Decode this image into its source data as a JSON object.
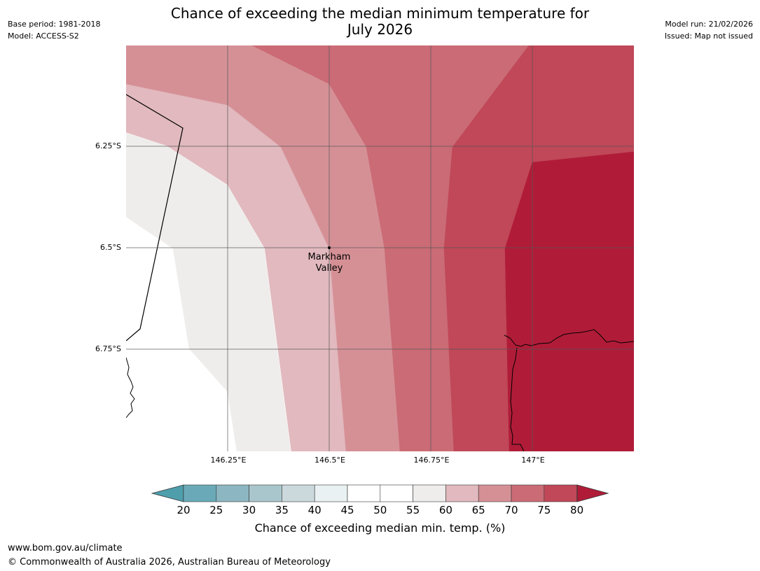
{
  "header": {
    "title_line1": "Chance of exceeding the median minimum temperature for",
    "title_line2": "July 2026",
    "base_period": "Base period: 1981-2018",
    "model": "Model: ACCESS-S2",
    "model_run": "Model run: 21/02/2026",
    "issued": "Issued: Map not issued"
  },
  "map": {
    "lat_labels": [
      "6.25°S",
      "6.5°S",
      "6.75°S"
    ],
    "lon_labels": [
      "146.25°E",
      "146.5°E",
      "146.75°E",
      "147°E"
    ],
    "place": {
      "name_line1": "Markham",
      "name_line2": "Valley"
    },
    "colors": {
      "c55_60": "#efedeb",
      "c60_65": "#e1b9be",
      "c65_70": "#d59096",
      "c70_75": "#ca6b75",
      "c75_80": "#c04858",
      "c80_plus": "#b01c38"
    }
  },
  "colorbar": {
    "ticks": [
      "20",
      "25",
      "30",
      "35",
      "40",
      "45",
      "50",
      "55",
      "60",
      "65",
      "70",
      "75",
      "80"
    ],
    "label": "Chance of exceeding median min. temp. (%)",
    "colors": [
      "#6aaab8",
      "#8cb6c2",
      "#a9c6cc",
      "#ccd9dc",
      "#eaf1f2",
      "#ffffff",
      "#ffffff",
      "#efedeb",
      "#e1b9be",
      "#d59096",
      "#ca6b75",
      "#c04858"
    ],
    "under_color": "#4e9eac",
    "over_color": "#b01c38"
  },
  "footer": {
    "url": "www.bom.gov.au/climate",
    "copyright": "© Commonwealth of Australia 2026, Australian Bureau of Meteorology"
  }
}
